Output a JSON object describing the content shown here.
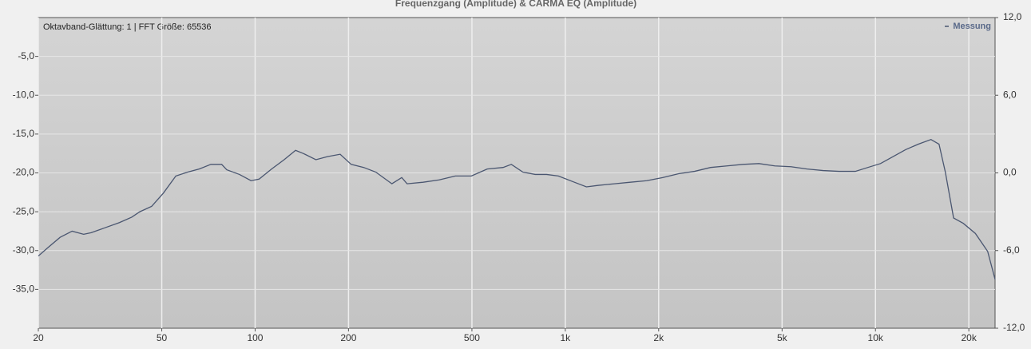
{
  "chart_data": {
    "type": "line",
    "title": "Frequenzgang (Amplitude) & CARMA EQ (Amplitude)",
    "annotation": "Oktavband-Glättung: 1 | FFT Größe: 65536",
    "log_x": true,
    "grid": true,
    "legend": "top-right",
    "xlim": [
      20,
      24300
    ],
    "xticks": [
      20,
      50,
      100,
      200,
      500,
      {
        "value": 1000,
        "label": "1k"
      },
      {
        "value": 2000,
        "label": "2k"
      },
      {
        "value": 5000,
        "label": "5k"
      },
      {
        "value": 10000,
        "label": "10k"
      },
      {
        "value": 20000,
        "label": "20k"
      }
    ],
    "ylim": [
      -40,
      0
    ],
    "yticks": [
      {
        "value": -5,
        "label": "-5,0"
      },
      {
        "value": -10,
        "label": "-10,0"
      },
      {
        "value": -15,
        "label": "-15,0"
      },
      {
        "value": -20,
        "label": "-20,0"
      },
      {
        "value": -25,
        "label": "-25,0"
      },
      {
        "value": -30,
        "label": "-30,0"
      },
      {
        "value": -35,
        "label": "-35,0"
      }
    ],
    "y2lim": [
      -12,
      12
    ],
    "y2ticks": [
      {
        "value": 12,
        "label": "12,0"
      },
      {
        "value": 6,
        "label": "6,0"
      },
      {
        "value": 0,
        "label": "0,0"
      },
      {
        "value": -6,
        "label": "-6,0"
      },
      {
        "value": -12,
        "label": "-12,0"
      }
    ],
    "x": [
      20,
      21.5,
      23.5,
      25.7,
      28,
      29.6,
      32.6,
      36.5,
      40,
      42.5,
      46.4,
      50.6,
      55.5,
      60.6,
      66,
      72,
      78,
      81,
      89,
      97,
      103,
      113,
      124,
      135,
      143,
      157,
      171,
      188,
      204,
      224,
      245,
      276,
      297,
      309,
      348,
      392,
      442,
      498,
      560,
      630,
      670,
      730,
      800,
      870,
      950,
      1070,
      1170,
      1280,
      1440,
      1620,
      1830,
      2060,
      2320,
      2610,
      2940,
      3320,
      3740,
      4210,
      4740,
      5340,
      6020,
      6780,
      7640,
      8610,
      9450,
      10380,
      11400,
      12520,
      13750,
      15100,
      16030,
      16800,
      17860,
      19200,
      21000,
      23000,
      24300
    ],
    "series": [
      {
        "name": "Messung",
        "color": "#4a5670",
        "values": [
          -30.7,
          -29.6,
          -28.3,
          -27.5,
          -27.9,
          -27.7,
          -27.1,
          -26.4,
          -25.7,
          -25.0,
          -24.3,
          -22.6,
          -20.4,
          -19.9,
          -19.5,
          -18.9,
          -18.9,
          -19.6,
          -20.2,
          -21.0,
          -20.8,
          -19.5,
          -18.3,
          -17.1,
          -17.5,
          -18.3,
          -17.9,
          -17.6,
          -18.9,
          -19.3,
          -19.9,
          -21.4,
          -20.6,
          -21.4,
          -21.2,
          -20.9,
          -20.4,
          -20.4,
          -19.5,
          -19.3,
          -18.9,
          -19.9,
          -20.2,
          -20.2,
          -20.4,
          -21.2,
          -21.8,
          -21.6,
          -21.4,
          -21.2,
          -21.0,
          -20.6,
          -20.1,
          -19.8,
          -19.3,
          -19.1,
          -18.9,
          -18.8,
          -19.1,
          -19.2,
          -19.5,
          -19.7,
          -19.8,
          -19.8,
          -19.3,
          -18.8,
          -17.9,
          -17.0,
          -16.3,
          -15.7,
          -16.3,
          -19.9,
          -25.8,
          -26.5,
          -27.8,
          -30.1,
          -33.7
        ]
      }
    ]
  }
}
